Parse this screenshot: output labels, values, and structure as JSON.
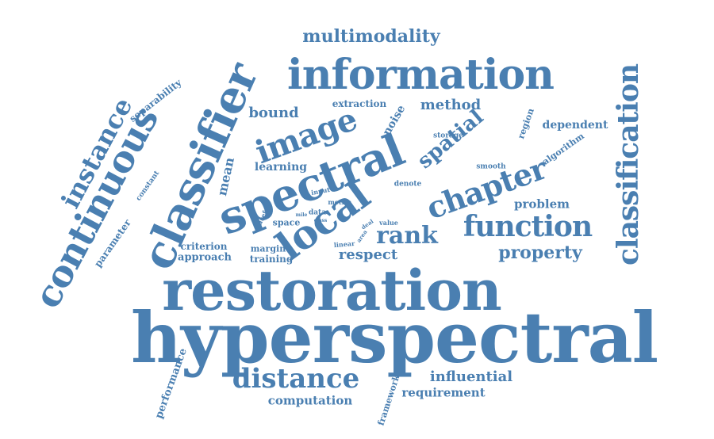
{
  "cloud": {
    "color": "#4a7fb1",
    "words": [
      {
        "text": "hyperspectral",
        "weight": 100
      },
      {
        "text": "restoration",
        "weight": 90
      },
      {
        "text": "classifier",
        "weight": 70
      },
      {
        "text": "continuous",
        "weight": 62
      },
      {
        "text": "spectral",
        "weight": 62
      },
      {
        "text": "information",
        "weight": 55
      },
      {
        "text": "local",
        "weight": 52
      },
      {
        "text": "classification",
        "weight": 45
      },
      {
        "text": "image",
        "weight": 44
      },
      {
        "text": "chapter",
        "weight": 42
      },
      {
        "text": "function",
        "weight": 40
      },
      {
        "text": "instance",
        "weight": 38
      },
      {
        "text": "distance",
        "weight": 38
      },
      {
        "text": "rank",
        "weight": 33
      },
      {
        "text": "spatial",
        "weight": 28
      },
      {
        "text": "multimodality",
        "weight": 26
      },
      {
        "text": "property",
        "weight": 25
      },
      {
        "text": "influential",
        "weight": 20
      },
      {
        "text": "bound",
        "weight": 18
      },
      {
        "text": "method",
        "weight": 18
      },
      {
        "text": "respect",
        "weight": 18
      },
      {
        "text": "mean",
        "weight": 17
      },
      {
        "text": "requirement",
        "weight": 16
      },
      {
        "text": "computation",
        "weight": 16
      },
      {
        "text": "problem",
        "weight": 15
      },
      {
        "text": "learning",
        "weight": 15
      },
      {
        "text": "noise",
        "weight": 14
      },
      {
        "text": "dependent",
        "weight": 14
      },
      {
        "text": "performance",
        "weight": 14
      },
      {
        "text": "approach",
        "weight": 13
      },
      {
        "text": "separability",
        "weight": 13
      },
      {
        "text": "parameter",
        "weight": 12
      },
      {
        "text": "criterion",
        "weight": 12
      },
      {
        "text": "training",
        "weight": 12
      },
      {
        "text": "extraction",
        "weight": 11
      },
      {
        "text": "algorithm",
        "weight": 11
      },
      {
        "text": "margin",
        "weight": 11
      },
      {
        "text": "region",
        "weight": 11
      },
      {
        "text": "framework",
        "weight": 11
      },
      {
        "text": "space",
        "weight": 10
      },
      {
        "text": "storage",
        "weight": 9
      },
      {
        "text": "constant",
        "weight": 9
      },
      {
        "text": "smooth",
        "weight": 9
      },
      {
        "text": "denote",
        "weight": 9
      },
      {
        "text": "data",
        "weight": 8
      },
      {
        "text": "useful",
        "weight": 7
      },
      {
        "text": "metric",
        "weight": 7
      },
      {
        "text": "input",
        "weight": 7
      },
      {
        "text": "value",
        "weight": 7
      },
      {
        "text": "linear",
        "weight": 7
      },
      {
        "text": "mile",
        "weight": 6
      },
      {
        "text": "class",
        "weight": 6
      },
      {
        "text": "deal",
        "weight": 6
      },
      {
        "text": "area",
        "weight": 6
      }
    ]
  }
}
